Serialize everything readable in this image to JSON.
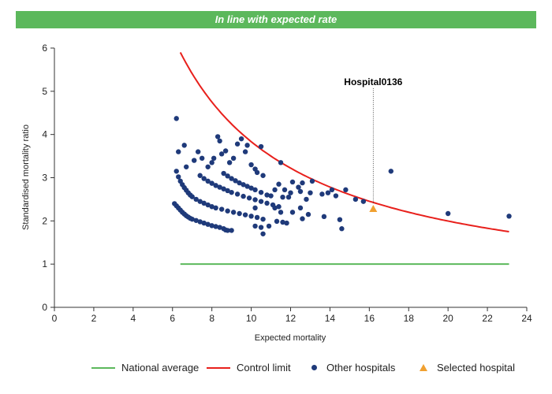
{
  "banner": {
    "text": "In line with expected rate"
  },
  "colors": {
    "banner": "#5cb85c",
    "national": "#5cb85c",
    "control": "#e8201c",
    "other": "#1f3a7a",
    "selected": "#f0a030"
  },
  "chart_data": {
    "type": "scatter",
    "xlabel": "Expected mortality",
    "ylabel": "Standardised mortality ratio",
    "xlim": [
      0,
      24
    ],
    "ylim": [
      0,
      6
    ],
    "xticks": [
      "0",
      "2",
      "4",
      "6",
      "8",
      "10",
      "12",
      "14",
      "16",
      "18",
      "20",
      "22",
      "24"
    ],
    "yticks": [
      "0",
      "1",
      "2",
      "3",
      "4",
      "5",
      "6"
    ],
    "grid": false,
    "legend_position": "bottom",
    "national_average": {
      "name": "National average",
      "y": 1,
      "x_range": [
        6.4,
        23.1
      ]
    },
    "control_limit": {
      "name": "Control limit",
      "x_range": [
        6.4,
        23.1
      ],
      "y_at_start": 5.9,
      "y_at_end": 1.75
    },
    "selected": {
      "name": "Selected hospital",
      "label": "Hospital0136",
      "x": 16.2,
      "y": 2.28
    },
    "other_hospitals": {
      "name": "Other hospitals",
      "points": [
        [
          6.1,
          2.4
        ],
        [
          6.2,
          2.35
        ],
        [
          6.3,
          2.3
        ],
        [
          6.4,
          2.25
        ],
        [
          6.5,
          2.2
        ],
        [
          6.6,
          2.16
        ],
        [
          6.7,
          2.12
        ],
        [
          6.8,
          2.09
        ],
        [
          6.9,
          2.06
        ],
        [
          7.0,
          2.04
        ],
        [
          7.2,
          2.01
        ],
        [
          7.4,
          1.98
        ],
        [
          7.6,
          1.95
        ],
        [
          7.8,
          1.92
        ],
        [
          8.0,
          1.89
        ],
        [
          8.2,
          1.87
        ],
        [
          8.4,
          1.85
        ],
        [
          8.6,
          1.82
        ],
        [
          8.8,
          1.78
        ],
        [
          6.2,
          3.15
        ],
        [
          6.3,
          3.02
        ],
        [
          6.4,
          2.92
        ],
        [
          6.5,
          2.84
        ],
        [
          6.6,
          2.77
        ],
        [
          6.7,
          2.71
        ],
        [
          6.8,
          2.65
        ],
        [
          6.9,
          2.6
        ],
        [
          7.0,
          2.56
        ],
        [
          7.2,
          2.5
        ],
        [
          7.4,
          2.45
        ],
        [
          7.6,
          2.41
        ],
        [
          7.8,
          2.37
        ],
        [
          8.0,
          2.33
        ],
        [
          8.2,
          2.3
        ],
        [
          8.5,
          2.27
        ],
        [
          8.8,
          2.23
        ],
        [
          9.1,
          2.2
        ],
        [
          9.4,
          2.17
        ],
        [
          9.7,
          2.14
        ],
        [
          10.0,
          2.11
        ],
        [
          10.3,
          2.08
        ],
        [
          10.6,
          2.04
        ],
        [
          7.4,
          3.05
        ],
        [
          7.6,
          2.98
        ],
        [
          7.8,
          2.92
        ],
        [
          8.0,
          2.87
        ],
        [
          8.2,
          2.82
        ],
        [
          8.4,
          2.78
        ],
        [
          8.6,
          2.74
        ],
        [
          8.8,
          2.7
        ],
        [
          9.0,
          2.66
        ],
        [
          9.3,
          2.62
        ],
        [
          9.6,
          2.57
        ],
        [
          9.9,
          2.53
        ],
        [
          10.2,
          2.49
        ],
        [
          10.5,
          2.45
        ],
        [
          10.8,
          2.41
        ],
        [
          11.1,
          2.37
        ],
        [
          11.4,
          2.33
        ],
        [
          8.6,
          3.1
        ],
        [
          8.8,
          3.04
        ],
        [
          9.0,
          2.98
        ],
        [
          9.2,
          2.93
        ],
        [
          9.4,
          2.88
        ],
        [
          9.6,
          2.84
        ],
        [
          9.8,
          2.8
        ],
        [
          10.0,
          2.76
        ],
        [
          10.2,
          2.72
        ],
        [
          10.5,
          2.66
        ],
        [
          6.3,
          3.6
        ],
        [
          6.6,
          3.75
        ],
        [
          6.2,
          4.37
        ],
        [
          6.7,
          3.25
        ],
        [
          7.1,
          3.4
        ],
        [
          7.3,
          3.6
        ],
        [
          7.5,
          3.45
        ],
        [
          7.8,
          3.25
        ],
        [
          8.0,
          3.35
        ],
        [
          8.1,
          3.45
        ],
        [
          8.3,
          3.95
        ],
        [
          8.4,
          3.85
        ],
        [
          8.5,
          3.55
        ],
        [
          8.7,
          3.62
        ],
        [
          8.9,
          3.35
        ],
        [
          9.1,
          3.45
        ],
        [
          9.3,
          3.78
        ],
        [
          9.5,
          3.9
        ],
        [
          9.7,
          3.6
        ],
        [
          9.8,
          3.75
        ],
        [
          10.0,
          3.3
        ],
        [
          10.2,
          3.2
        ],
        [
          10.3,
          3.12
        ],
        [
          10.5,
          3.72
        ],
        [
          10.6,
          3.05
        ],
        [
          10.8,
          2.6
        ],
        [
          11.0,
          2.58
        ],
        [
          11.2,
          2.72
        ],
        [
          11.4,
          2.85
        ],
        [
          11.5,
          3.35
        ],
        [
          11.6,
          2.55
        ],
        [
          11.7,
          2.72
        ],
        [
          11.9,
          2.55
        ],
        [
          12.0,
          2.65
        ],
        [
          12.1,
          2.9
        ],
        [
          12.4,
          2.78
        ],
        [
          12.5,
          2.68
        ],
        [
          12.6,
          2.88
        ],
        [
          12.8,
          2.5
        ],
        [
          13.0,
          2.65
        ],
        [
          13.1,
          2.92
        ],
        [
          13.6,
          2.62
        ],
        [
          13.9,
          2.65
        ],
        [
          14.1,
          2.72
        ],
        [
          14.3,
          2.58
        ],
        [
          14.8,
          2.72
        ],
        [
          15.3,
          2.5
        ],
        [
          15.7,
          2.45
        ],
        [
          17.1,
          3.15
        ],
        [
          20.0,
          2.17
        ],
        [
          23.1,
          2.11
        ],
        [
          10.2,
          1.88
        ],
        [
          10.5,
          1.85
        ],
        [
          10.6,
          1.7
        ],
        [
          10.9,
          1.88
        ],
        [
          11.3,
          1.99
        ],
        [
          11.6,
          1.97
        ],
        [
          11.8,
          1.95
        ],
        [
          12.1,
          2.2
        ],
        [
          12.5,
          2.3
        ],
        [
          12.6,
          2.05
        ],
        [
          12.9,
          2.15
        ],
        [
          13.7,
          2.1
        ],
        [
          14.5,
          2.03
        ],
        [
          14.6,
          1.82
        ],
        [
          11.2,
          2.3
        ],
        [
          11.5,
          2.2
        ],
        [
          10.2,
          2.3
        ],
        [
          9.0,
          1.78
        ],
        [
          8.7,
          1.79
        ]
      ]
    }
  },
  "legend": {
    "national": "National average",
    "control": "Control limit",
    "other": "Other hospitals",
    "selected": "Selected hospital"
  }
}
